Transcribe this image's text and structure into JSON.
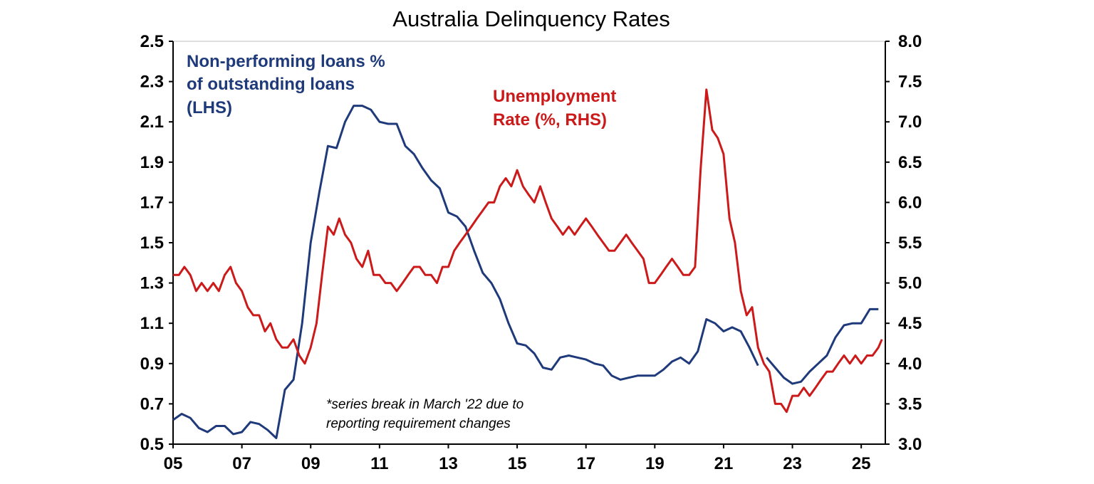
{
  "chart_data": {
    "type": "line",
    "title": "Australia Delinquency Rates",
    "note_lines": [
      "*series break in March '22 due to",
      "reporting requirement changes"
    ],
    "x_tick_labels": [
      "05",
      "07",
      "09",
      "11",
      "13",
      "15",
      "17",
      "19",
      "21",
      "23",
      "25"
    ],
    "x_tick_values": [
      2005,
      2007,
      2009,
      2011,
      2013,
      2015,
      2017,
      2019,
      2021,
      2023,
      2025
    ],
    "xlim": [
      2005,
      2025.7
    ],
    "y_left": {
      "lim": [
        0.5,
        2.5
      ],
      "ticks": [
        "2.5",
        "2.3",
        "2.1",
        "1.9",
        "1.7",
        "1.5",
        "1.3",
        "1.1",
        "0.9",
        "0.7",
        "0.5"
      ]
    },
    "y_right": {
      "lim": [
        3.0,
        8.0
      ],
      "ticks": [
        "8.0",
        "7.5",
        "7.0",
        "6.5",
        "6.0",
        "5.5",
        "5.0",
        "4.5",
        "4.0",
        "3.5",
        "3.0"
      ]
    },
    "grid": false,
    "series": [
      {
        "name_lines": [
          "Non-performing loans %",
          "of outstanding loans",
          "(LHS)"
        ],
        "axis": "left",
        "color": "#1f3a7a",
        "segments": [
          [
            [
              2005.0,
              0.62
            ],
            [
              2005.25,
              0.65
            ],
            [
              2005.5,
              0.63
            ],
            [
              2005.75,
              0.58
            ],
            [
              2006.0,
              0.56
            ],
            [
              2006.25,
              0.59
            ],
            [
              2006.5,
              0.59
            ],
            [
              2006.75,
              0.55
            ],
            [
              2007.0,
              0.56
            ],
            [
              2007.25,
              0.61
            ],
            [
              2007.5,
              0.6
            ],
            [
              2007.75,
              0.57
            ],
            [
              2008.0,
              0.53
            ],
            [
              2008.25,
              0.77
            ],
            [
              2008.5,
              0.82
            ],
            [
              2008.75,
              1.1
            ],
            [
              2009.0,
              1.5
            ],
            [
              2009.25,
              1.75
            ],
            [
              2009.5,
              1.98
            ],
            [
              2009.75,
              1.97
            ],
            [
              2010.0,
              2.1
            ],
            [
              2010.25,
              2.18
            ],
            [
              2010.5,
              2.18
            ],
            [
              2010.75,
              2.16
            ],
            [
              2011.0,
              2.1
            ],
            [
              2011.25,
              2.09
            ],
            [
              2011.5,
              2.09
            ],
            [
              2011.75,
              1.98
            ],
            [
              2012.0,
              1.94
            ],
            [
              2012.25,
              1.87
            ],
            [
              2012.5,
              1.81
            ],
            [
              2012.75,
              1.77
            ],
            [
              2013.0,
              1.65
            ],
            [
              2013.25,
              1.63
            ],
            [
              2013.5,
              1.58
            ],
            [
              2013.75,
              1.46
            ],
            [
              2014.0,
              1.35
            ],
            [
              2014.25,
              1.3
            ],
            [
              2014.5,
              1.22
            ],
            [
              2014.75,
              1.1
            ],
            [
              2015.0,
              1.0
            ],
            [
              2015.25,
              0.99
            ],
            [
              2015.5,
              0.95
            ],
            [
              2015.75,
              0.88
            ],
            [
              2016.0,
              0.87
            ],
            [
              2016.25,
              0.93
            ],
            [
              2016.5,
              0.94
            ],
            [
              2016.75,
              0.93
            ],
            [
              2017.0,
              0.92
            ],
            [
              2017.25,
              0.9
            ],
            [
              2017.5,
              0.89
            ],
            [
              2017.75,
              0.84
            ],
            [
              2018.0,
              0.82
            ],
            [
              2018.25,
              0.83
            ],
            [
              2018.5,
              0.84
            ],
            [
              2018.75,
              0.84
            ],
            [
              2019.0,
              0.84
            ],
            [
              2019.25,
              0.87
            ],
            [
              2019.5,
              0.91
            ],
            [
              2019.75,
              0.93
            ],
            [
              2020.0,
              0.9
            ],
            [
              2020.25,
              0.96
            ],
            [
              2020.5,
              1.12
            ],
            [
              2020.75,
              1.1
            ],
            [
              2021.0,
              1.06
            ],
            [
              2021.25,
              1.08
            ],
            [
              2021.5,
              1.06
            ],
            [
              2021.75,
              0.98
            ],
            [
              2022.0,
              0.89
            ]
          ],
          [
            [
              2022.25,
              0.93
            ],
            [
              2022.5,
              0.88
            ],
            [
              2022.75,
              0.83
            ],
            [
              2023.0,
              0.8
            ],
            [
              2023.25,
              0.81
            ],
            [
              2023.5,
              0.86
            ],
            [
              2023.75,
              0.9
            ],
            [
              2024.0,
              0.94
            ],
            [
              2024.25,
              1.03
            ],
            [
              2024.5,
              1.09
            ],
            [
              2024.75,
              1.1
            ],
            [
              2025.0,
              1.1
            ],
            [
              2025.25,
              1.17
            ],
            [
              2025.5,
              1.17
            ]
          ]
        ]
      },
      {
        "name_lines": [
          "Unemployment",
          "Rate (%, RHS)"
        ],
        "axis": "right",
        "color": "#cc1a1a",
        "segments": [
          [
            [
              2005.0,
              5.1
            ],
            [
              2005.17,
              5.1
            ],
            [
              2005.33,
              5.2
            ],
            [
              2005.5,
              5.1
            ],
            [
              2005.67,
              4.9
            ],
            [
              2005.83,
              5.0
            ],
            [
              2006.0,
              4.9
            ],
            [
              2006.17,
              5.0
            ],
            [
              2006.33,
              4.9
            ],
            [
              2006.5,
              5.1
            ],
            [
              2006.67,
              5.2
            ],
            [
              2006.83,
              5.0
            ],
            [
              2007.0,
              4.9
            ],
            [
              2007.17,
              4.7
            ],
            [
              2007.33,
              4.6
            ],
            [
              2007.5,
              4.6
            ],
            [
              2007.67,
              4.4
            ],
            [
              2007.83,
              4.5
            ],
            [
              2008.0,
              4.3
            ],
            [
              2008.17,
              4.2
            ],
            [
              2008.33,
              4.2
            ],
            [
              2008.5,
              4.3
            ],
            [
              2008.67,
              4.1
            ],
            [
              2008.83,
              4.0
            ],
            [
              2009.0,
              4.2
            ],
            [
              2009.17,
              4.5
            ],
            [
              2009.33,
              5.1
            ],
            [
              2009.5,
              5.7
            ],
            [
              2009.67,
              5.6
            ],
            [
              2009.83,
              5.8
            ],
            [
              2010.0,
              5.6
            ],
            [
              2010.17,
              5.5
            ],
            [
              2010.33,
              5.3
            ],
            [
              2010.5,
              5.2
            ],
            [
              2010.67,
              5.4
            ],
            [
              2010.83,
              5.1
            ],
            [
              2011.0,
              5.1
            ],
            [
              2011.17,
              5.0
            ],
            [
              2011.33,
              5.0
            ],
            [
              2011.5,
              4.9
            ],
            [
              2011.67,
              5.0
            ],
            [
              2011.83,
              5.1
            ],
            [
              2012.0,
              5.2
            ],
            [
              2012.17,
              5.2
            ],
            [
              2012.33,
              5.1
            ],
            [
              2012.5,
              5.1
            ],
            [
              2012.67,
              5.0
            ],
            [
              2012.83,
              5.2
            ],
            [
              2013.0,
              5.2
            ],
            [
              2013.17,
              5.4
            ],
            [
              2013.33,
              5.5
            ],
            [
              2013.5,
              5.6
            ],
            [
              2013.67,
              5.7
            ],
            [
              2013.83,
              5.8
            ],
            [
              2014.0,
              5.9
            ],
            [
              2014.17,
              6.0
            ],
            [
              2014.33,
              6.0
            ],
            [
              2014.5,
              6.2
            ],
            [
              2014.67,
              6.3
            ],
            [
              2014.83,
              6.2
            ],
            [
              2015.0,
              6.4
            ],
            [
              2015.17,
              6.2
            ],
            [
              2015.33,
              6.1
            ],
            [
              2015.5,
              6.0
            ],
            [
              2015.67,
              6.2
            ],
            [
              2015.83,
              6.0
            ],
            [
              2016.0,
              5.8
            ],
            [
              2016.17,
              5.7
            ],
            [
              2016.33,
              5.6
            ],
            [
              2016.5,
              5.7
            ],
            [
              2016.67,
              5.6
            ],
            [
              2016.83,
              5.7
            ],
            [
              2017.0,
              5.8
            ],
            [
              2017.17,
              5.7
            ],
            [
              2017.33,
              5.6
            ],
            [
              2017.5,
              5.5
            ],
            [
              2017.67,
              5.4
            ],
            [
              2017.83,
              5.4
            ],
            [
              2018.0,
              5.5
            ],
            [
              2018.17,
              5.6
            ],
            [
              2018.33,
              5.5
            ],
            [
              2018.5,
              5.4
            ],
            [
              2018.67,
              5.3
            ],
            [
              2018.83,
              5.0
            ],
            [
              2019.0,
              5.0
            ],
            [
              2019.17,
              5.1
            ],
            [
              2019.33,
              5.2
            ],
            [
              2019.5,
              5.3
            ],
            [
              2019.67,
              5.2
            ],
            [
              2019.83,
              5.1
            ],
            [
              2020.0,
              5.1
            ],
            [
              2020.17,
              5.2
            ],
            [
              2020.33,
              6.4
            ],
            [
              2020.5,
              7.4
            ],
            [
              2020.67,
              6.9
            ],
            [
              2020.83,
              6.8
            ],
            [
              2021.0,
              6.6
            ],
            [
              2021.17,
              5.8
            ],
            [
              2021.33,
              5.5
            ],
            [
              2021.5,
              4.9
            ],
            [
              2021.67,
              4.6
            ],
            [
              2021.83,
              4.7
            ],
            [
              2022.0,
              4.2
            ],
            [
              2022.17,
              4.0
            ],
            [
              2022.33,
              3.9
            ],
            [
              2022.5,
              3.5
            ],
            [
              2022.67,
              3.5
            ],
            [
              2022.83,
              3.4
            ],
            [
              2023.0,
              3.6
            ],
            [
              2023.17,
              3.6
            ],
            [
              2023.33,
              3.7
            ],
            [
              2023.5,
              3.6
            ],
            [
              2023.67,
              3.7
            ],
            [
              2023.83,
              3.8
            ],
            [
              2024.0,
              3.9
            ],
            [
              2024.17,
              3.9
            ],
            [
              2024.33,
              4.0
            ],
            [
              2024.5,
              4.1
            ],
            [
              2024.67,
              4.0
            ],
            [
              2024.83,
              4.1
            ],
            [
              2025.0,
              4.0
            ],
            [
              2025.17,
              4.1
            ],
            [
              2025.33,
              4.1
            ],
            [
              2025.5,
              4.2
            ],
            [
              2025.6,
              4.3
            ]
          ]
        ]
      }
    ]
  }
}
